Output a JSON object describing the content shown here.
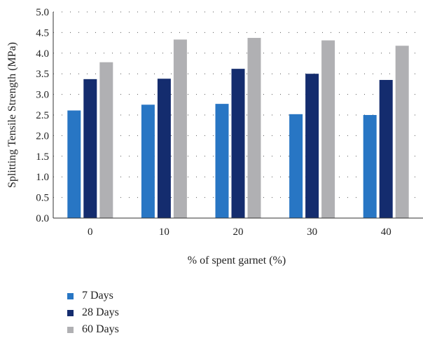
{
  "chart_data": {
    "type": "bar",
    "categories": [
      "0",
      "10",
      "20",
      "30",
      "40"
    ],
    "xlabel": "% of spent garnet (%)",
    "ylabel": "Splitting Tensile Strength (MPa)",
    "ylim": [
      0,
      5
    ],
    "yticks": [
      "0.0",
      "0.5",
      "1.0",
      "1.5",
      "2.0",
      "2.5",
      "3.0",
      "3.5",
      "4.0",
      "4.5",
      "5.0"
    ],
    "grid": true,
    "legend_position": "bottom-left",
    "series": [
      {
        "name": "7 Days",
        "color": "#2876c4",
        "values": [
          2.61,
          2.75,
          2.77,
          2.52,
          2.5
        ]
      },
      {
        "name": "28 Days",
        "color": "#142c6e",
        "values": [
          3.37,
          3.38,
          3.62,
          3.5,
          3.35
        ]
      },
      {
        "name": "60 Days",
        "color": "#b0b0b3",
        "values": [
          3.78,
          4.33,
          4.37,
          4.31,
          4.18
        ]
      }
    ]
  }
}
